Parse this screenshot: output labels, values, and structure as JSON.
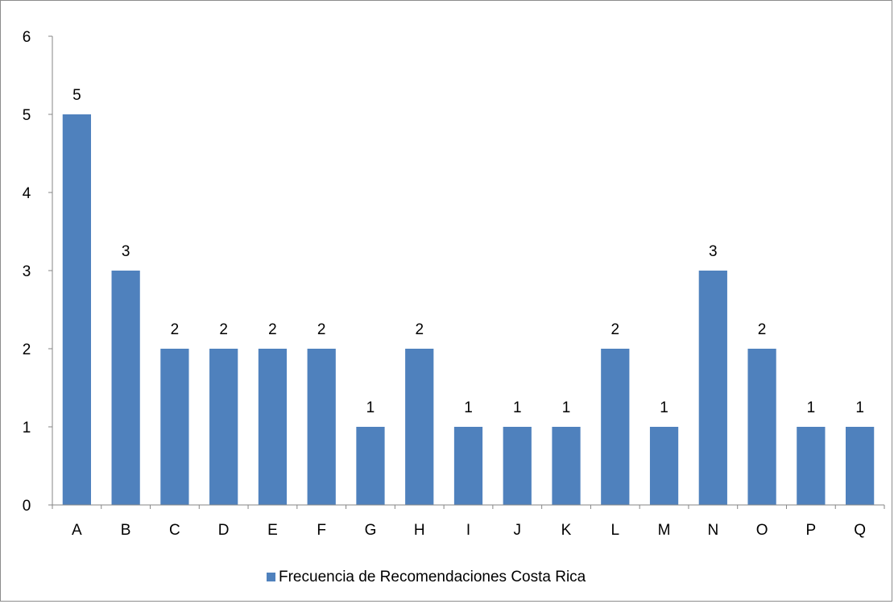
{
  "chart_data": {
    "type": "bar",
    "categories": [
      "A",
      "B",
      "C",
      "D",
      "E",
      "F",
      "G",
      "H",
      "I",
      "J",
      "K",
      "L",
      "M",
      "N",
      "O",
      "P",
      "Q"
    ],
    "series": [
      {
        "name": "Frecuencia de Recomendaciones Costa Rica",
        "values": [
          5,
          3,
          2,
          2,
          2,
          2,
          1,
          2,
          1,
          1,
          1,
          2,
          1,
          3,
          2,
          1,
          1
        ],
        "color": "#4f81bd"
      }
    ],
    "ylim": [
      0,
      6
    ],
    "y_ticks": [
      "0",
      "1",
      "2",
      "3",
      "4",
      "5",
      "6"
    ],
    "data_labels": true,
    "grid": false,
    "legend_position": "bottom"
  }
}
